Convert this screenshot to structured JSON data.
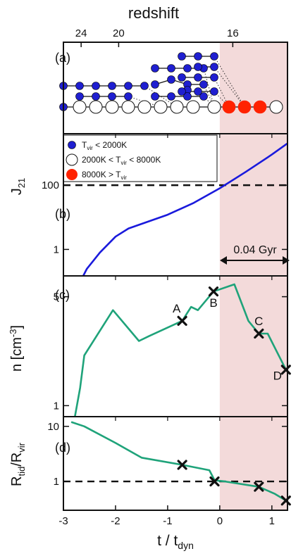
{
  "figure": {
    "top_axis_label": "redshift",
    "top_ticks": [
      {
        "label": "24",
        "t": -2.66
      },
      {
        "label": "20",
        "t": -1.94
      },
      {
        "label": "16",
        "t": 0.25
      }
    ],
    "xlabel_main": "t / t",
    "xlabel_sub": "dyn",
    "x_ticks": [
      "-3",
      "-2",
      "-1",
      "0",
      "1"
    ],
    "xlim": [
      -3,
      1.3
    ],
    "highlight_start": 0.0,
    "colors": {
      "highlight": "#f3dada",
      "small_halo": "#1f1fd0",
      "large_halo": "#ff2200",
      "curve_j21": "#1a1adc",
      "curve_green": "#1fa37a"
    }
  },
  "chart_data": [
    {
      "panel": "(a)",
      "type": "other",
      "legend": [
        {
          "key": "small",
          "text_pre": "T",
          "text_sub": "vir",
          "text_post": " < 2000K"
        },
        {
          "key": "mid",
          "text_pre": "2000K < T",
          "text_sub": "vir",
          "text_post": " < 8000K"
        },
        {
          "key": "large",
          "text_pre": "8000K > T",
          "text_sub": "vir",
          "text_post": ""
        }
      ]
    },
    {
      "panel": "(b)",
      "type": "line",
      "ylabel_main": "J",
      "ylabel_sub": "21",
      "yscale": "log",
      "y_ticks": [
        "1",
        "100"
      ],
      "reference_line": 100,
      "annotation": "0.04 Gyr",
      "series": [
        {
          "x": [
            -2.62,
            -2.55,
            -2.3,
            -2.0,
            -1.75,
            -1.0,
            -0.5,
            0.0,
            0.5,
            1.0,
            1.3
          ],
          "y": [
            0.15,
            0.25,
            0.8,
            2.5,
            4.5,
            12,
            28,
            80,
            260,
            900,
            2000
          ]
        }
      ]
    },
    {
      "panel": "(c)",
      "type": "line",
      "ylabel_main": "n [cm",
      "ylabel_sup": "-3",
      "ylabel_end": "]",
      "yscale": "log",
      "y_ticks": [
        "1",
        "5"
      ],
      "series": [
        {
          "x": [
            -2.78,
            -2.68,
            -2.6,
            -2.05,
            -1.55,
            -1.35,
            -0.72,
            -0.55,
            -0.42,
            -0.12,
            0.28,
            0.55,
            0.75,
            0.92,
            1.27
          ],
          "y": [
            0.85,
            1.3,
            2.1,
            4.1,
            2.6,
            2.8,
            3.5,
            4.3,
            4.1,
            5.4,
            6.0,
            3.5,
            2.9,
            2.9,
            1.7
          ]
        }
      ],
      "markers": [
        {
          "label": "A",
          "x": -0.72,
          "y": 3.5
        },
        {
          "label": "B",
          "x": -0.12,
          "y": 5.4
        },
        {
          "label": "C",
          "x": 0.75,
          "y": 2.9
        },
        {
          "label": "D",
          "x": 1.27,
          "y": 1.7
        }
      ]
    },
    {
      "panel": "(d)",
      "type": "line",
      "ylabel_main": "R",
      "ylabel_sub": "tid",
      "ylabel_slash": "/R",
      "ylabel_sub2": "vir",
      "yscale": "log",
      "y_ticks": [
        "1",
        "10"
      ],
      "reference_line": 1,
      "series": [
        {
          "x": [
            -2.85,
            -2.6,
            -2.0,
            -1.5,
            -0.72,
            -0.2,
            -0.1,
            0.1,
            0.75,
            1.05,
            1.27
          ],
          "y": [
            12,
            10,
            5,
            2.7,
            2.0,
            1.6,
            1.05,
            1.0,
            0.8,
            0.6,
            0.45
          ]
        }
      ],
      "markers": [
        {
          "x": -0.72,
          "y": 2.0
        },
        {
          "x": -0.1,
          "y": 1.0
        },
        {
          "x": 0.75,
          "y": 0.8
        },
        {
          "x": 1.27,
          "y": 0.45
        }
      ]
    }
  ]
}
